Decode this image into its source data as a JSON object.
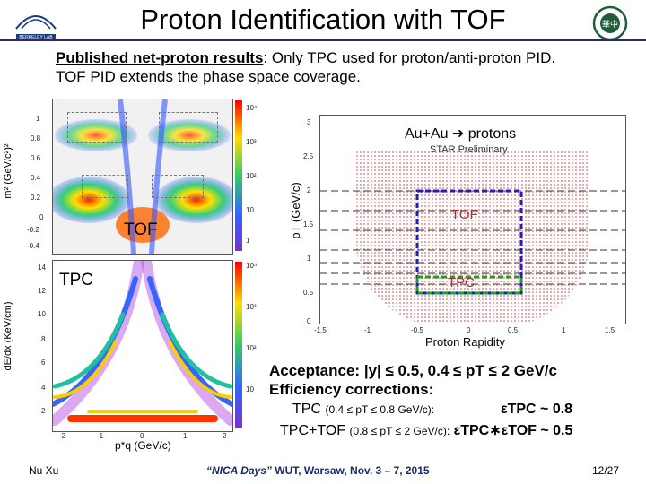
{
  "slide": {
    "title": "Proton Identification with TOF",
    "page_number": "12/27"
  },
  "intro": {
    "lead_bold": "Published net-proton results",
    "lead_rest": ":  Only TPC used for proton/anti-proton PID.",
    "line2": "TOF PID extends the phase space coverage."
  },
  "tof_plot": {
    "ylabel": "m² (GeV/c²)²",
    "yticks": [
      "1",
      "0.8",
      "0.6",
      "0.4",
      "0.2",
      "0",
      "-0.2",
      "-0.4"
    ],
    "zticks": [
      "10⁴",
      "10³",
      "10²",
      "10",
      "1"
    ],
    "label": "TOF"
  },
  "tpc_plot": {
    "ylabel": "dE/dx (KeV/cm)",
    "xlabel": "p*q (GeV/c)",
    "xticks": [
      "-2",
      "-1",
      "0",
      "1",
      "2"
    ],
    "yticks": [
      "14",
      "12",
      "10",
      "8",
      "6",
      "4",
      "2"
    ],
    "zticks": [
      "10⁴",
      "10³",
      "10²",
      "10"
    ],
    "label": "TPC"
  },
  "acceptance_plot": {
    "title": "Au+Au  ➔  protons",
    "subtitle": "STAR Preliminary",
    "ylabel": "pT (GeV/c)",
    "xlabel": "Proton Rapidity",
    "xticks": [
      "-1.5",
      "-1",
      "-0.5",
      "0",
      "0.5",
      "1",
      "1.5"
    ],
    "yticks": [
      "3",
      "2.5",
      "2",
      "1.5",
      "1",
      "0.5",
      "0"
    ],
    "box_tof_label": "TOF",
    "box_tpc_label": "TPC"
  },
  "acceptance": {
    "acceptance_text": "Acceptance: |y| ≤ 0.5, 0.4 ≤ pT ≤ 2 GeV/c",
    "efficiency_heading": "Efficiency  corrections:",
    "tpc_label": "TPC",
    "tpc_range": "(0.4 ≤ pT ≤ 0.8 GeV/c):",
    "tpc_value": "εTPC ~ 0.8",
    "tpctof_label": "TPC+TOF",
    "tpctof_range": "(0.8 ≤ pT ≤ 2 GeV/c):",
    "tpctof_value": "εTPC∗εTOF ~ 0.5"
  },
  "footer": {
    "author": "Nu Xu",
    "event_italic": "“NICA Days”",
    "event_rest": "WUT, Warsaw, Nov. 3 – 7, 2015"
  },
  "logos": {
    "left_caption": "BERKELEY LAB",
    "right_caption": "華中"
  },
  "colors": {
    "title_rule": "#2b2b6b",
    "tof_box": "#2020c0",
    "tpc_box": "#20a020",
    "grid_points": "#e06060"
  }
}
